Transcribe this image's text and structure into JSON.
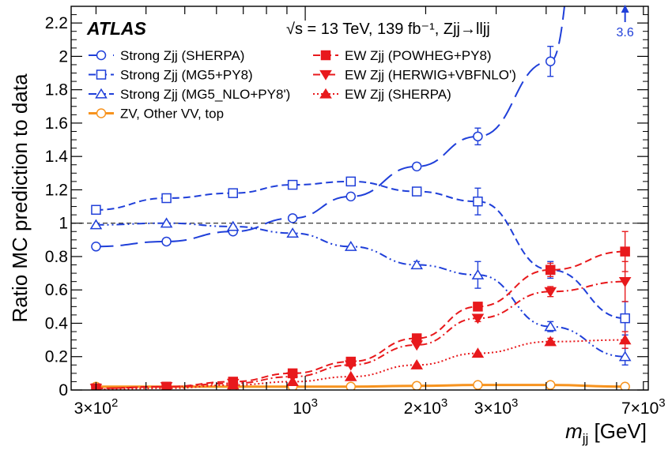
{
  "chart_data": {
    "type": "line",
    "experiment": "ATLAS",
    "header": "√s = 13 TeV, 139 fb⁻¹, Zjj→lljj",
    "xlabel": "m_jj  [GeV]",
    "ylabel": "Ratio MC prediction to data",
    "x_scale": "log",
    "xlim": [
      260,
      7200
    ],
    "ylim": [
      0,
      2.3
    ],
    "reference_line": 1.0,
    "x_ticks": [
      {
        "value": 300,
        "label": "3×10²"
      },
      {
        "value": 1000,
        "label": "10³"
      },
      {
        "value": 2000,
        "label": "2×10³"
      },
      {
        "value": 3000,
        "label": "3×10³"
      },
      {
        "value": 7000,
        "label": "7×10³"
      }
    ],
    "y_ticks": [
      {
        "value": 0,
        "label": "0"
      },
      {
        "value": 0.2,
        "label": "0.2"
      },
      {
        "value": 0.4,
        "label": "0.4"
      },
      {
        "value": 0.6,
        "label": "0.6"
      },
      {
        "value": 0.8,
        "label": "0.8"
      },
      {
        "value": 1.0,
        "label": "1"
      },
      {
        "value": 1.2,
        "label": "1.2"
      },
      {
        "value": 1.4,
        "label": "1.4"
      },
      {
        "value": 1.6,
        "label": "1.6"
      },
      {
        "value": 1.8,
        "label": "1.8"
      },
      {
        "value": 2.0,
        "label": "2"
      },
      {
        "value": 2.2,
        "label": "2.2"
      }
    ],
    "x": [
      300,
      450,
      660,
      930,
      1300,
      1900,
      2700,
      4100,
      6300
    ],
    "series": [
      {
        "name": "Strong Zjj (SHERPA)",
        "color": "#1f3fd9",
        "marker": "circle-open",
        "line": "longdash",
        "values": [
          0.86,
          0.89,
          0.95,
          1.03,
          1.16,
          1.34,
          1.52,
          1.97,
          null
        ],
        "errors": [
          0.005,
          0.005,
          0.01,
          0.01,
          0.01,
          0.02,
          0.05,
          0.09,
          null
        ]
      },
      {
        "name": "Strong Zjj (MG5+PY8)",
        "color": "#1f3fd9",
        "marker": "square-open",
        "line": "dash",
        "values": [
          1.08,
          1.15,
          1.18,
          1.23,
          1.25,
          1.19,
          1.13,
          0.72,
          0.43
        ],
        "errors": [
          0.01,
          0.01,
          0.01,
          0.01,
          0.01,
          0.02,
          0.08,
          0.05,
          0.1
        ]
      },
      {
        "name": "Strong Zjj (MG5_NLO+PY8')",
        "color": "#1f3fd9",
        "marker": "triangle-open",
        "line": "dashdotdot",
        "values": [
          0.99,
          1.0,
          0.98,
          0.94,
          0.86,
          0.75,
          0.69,
          0.38,
          0.2
        ],
        "errors": [
          0.005,
          0.005,
          0.01,
          0.01,
          0.01,
          0.02,
          0.08,
          0.03,
          0.05
        ]
      },
      {
        "name": "ZV, Other VV, top",
        "color": "#f7931e",
        "marker": "circle-open",
        "line": "solid",
        "values": [
          0.02,
          0.02,
          0.02,
          0.02,
          0.02,
          0.025,
          0.03,
          0.03,
          0.02
        ],
        "errors": [
          0,
          0,
          0,
          0,
          0,
          0,
          0,
          0,
          0
        ]
      },
      {
        "name": "EW Zjj (POWHEG+PY8)",
        "color": "#e8191c",
        "marker": "square-filled",
        "line": "dash",
        "values": [
          0.01,
          0.02,
          0.05,
          0.1,
          0.17,
          0.31,
          0.5,
          0.72,
          0.83
        ],
        "errors": [
          0,
          0,
          0.005,
          0.005,
          0.01,
          0.01,
          0.02,
          0.04,
          0.12
        ]
      },
      {
        "name": "EW Zjj (HERWIG+VBFNLO')",
        "color": "#e8191c",
        "marker": "triangle-down-filled",
        "line": "dashdot",
        "values": [
          0.01,
          0.02,
          0.04,
          0.08,
          0.15,
          0.27,
          0.43,
          0.59,
          0.65
        ],
        "errors": [
          0,
          0,
          0.005,
          0.005,
          0.01,
          0.01,
          0.02,
          0.03,
          0.12
        ]
      },
      {
        "name": "EW Zjj (SHERPA)",
        "color": "#e8191c",
        "marker": "triangle-up-filled",
        "line": "dot",
        "values": [
          0.005,
          0.01,
          0.03,
          0.05,
          0.08,
          0.15,
          0.22,
          0.29,
          0.3
        ],
        "errors": [
          0,
          0,
          0.005,
          0.005,
          0.005,
          0.01,
          0.01,
          0.02,
          0.05
        ]
      }
    ],
    "off_scale_annotation": {
      "x": 6300,
      "label": "3.6",
      "color": "#1f3fd9"
    },
    "legend": {
      "placement": "top-left",
      "left_column": [
        {
          "label": "Strong Zjj (SHERPA)",
          "series": 0
        },
        {
          "label": "Strong Zjj (MG5+PY8)",
          "series": 1
        },
        {
          "label": "Strong Zjj (MG5_NLO+PY8')",
          "series": 2
        },
        {
          "label": "ZV, Other VV, top",
          "series": 3
        }
      ],
      "right_column": [
        {
          "label": "EW Zjj (POWHEG+PY8)",
          "series": 4
        },
        {
          "label": "EW Zjj (HERWIG+VBFNLO')",
          "series": 5
        },
        {
          "label": "EW Zjj (SHERPA)",
          "series": 6
        }
      ]
    }
  }
}
